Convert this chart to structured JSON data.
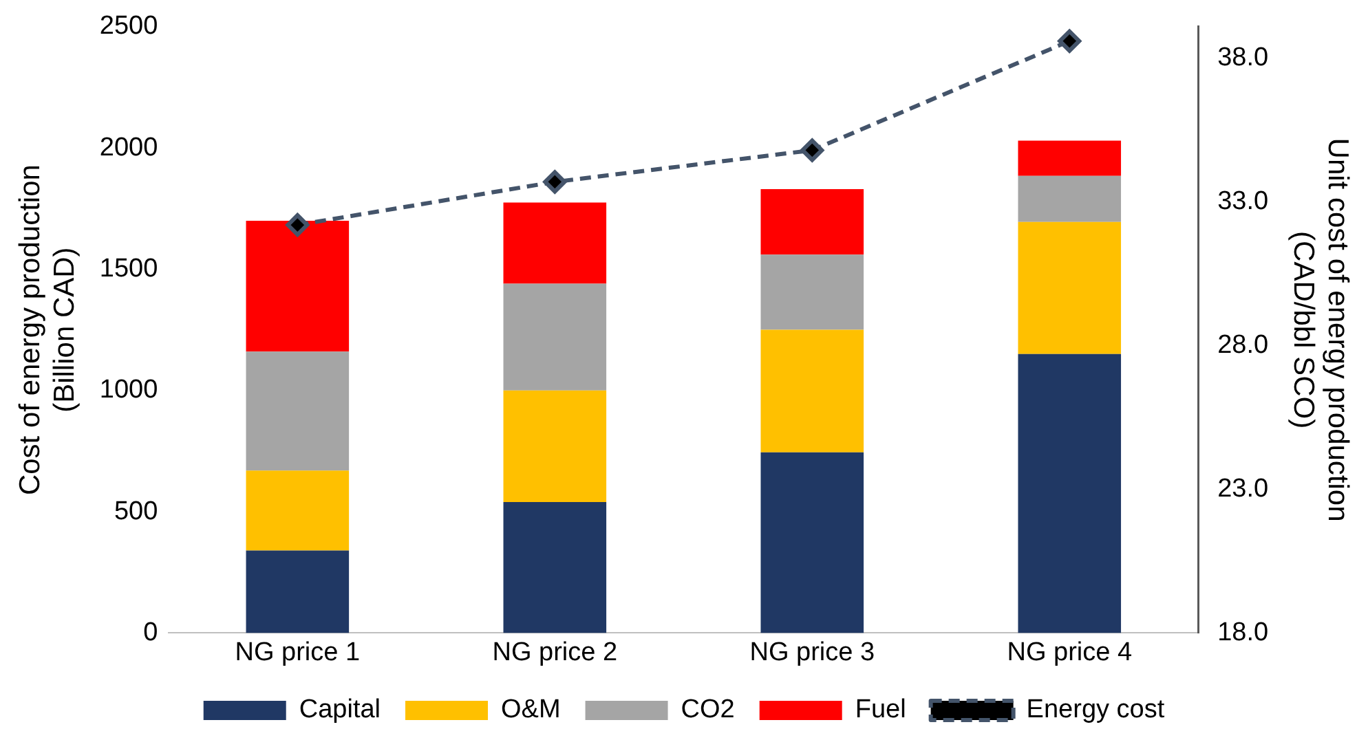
{
  "chart_data": {
    "type": "bar",
    "stacked": true,
    "ylabel": "Cost of energy production\n(Billion CAD)",
    "y2label": "Unit cost of energy production\n(CAD/bbl SCO)",
    "categories": [
      "NG price 1",
      "NG price 2",
      "NG price 3",
      "NG price 4"
    ],
    "series": [
      {
        "name": "Capital",
        "color": "#203864",
        "values": [
          340,
          540,
          745,
          1150
        ]
      },
      {
        "name": "O&M",
        "color": "#ffc000",
        "values": [
          330,
          460,
          505,
          545
        ]
      },
      {
        "name": "CO2",
        "color": "#a5a5a5",
        "values": [
          490,
          440,
          310,
          190
        ]
      },
      {
        "name": "Fuel",
        "color": "#ff0000",
        "values": [
          540,
          335,
          270,
          145
        ]
      },
      {
        "name": "Energy cost",
        "type": "line",
        "axis": "y2",
        "color": "#44546a",
        "marker": "diamond",
        "line_style": "dashed",
        "values": [
          32.2,
          33.7,
          34.8,
          38.6
        ]
      }
    ],
    "ylim": [
      0,
      2500
    ],
    "yticks": [
      0,
      500,
      1000,
      1500,
      2000,
      2500
    ],
    "y2lim": [
      18,
      39.1
    ],
    "y2ticks": [
      {
        "value": 18,
        "label": "18.0"
      },
      {
        "value": 23,
        "label": "23.0"
      },
      {
        "value": 28,
        "label": "28.0"
      },
      {
        "value": 33,
        "label": "33.0"
      },
      {
        "value": 38,
        "label": "38.0"
      }
    ],
    "grid": false,
    "legend": "bottom"
  }
}
